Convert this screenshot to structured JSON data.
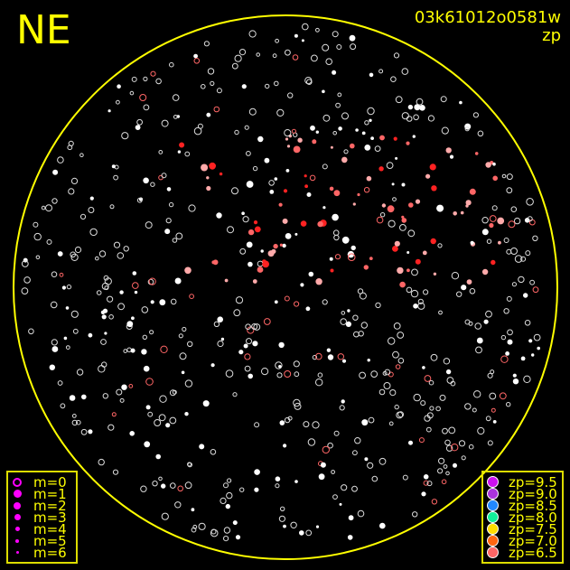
{
  "title": "NE",
  "frame_id": "03k61012o0581w",
  "mode_label": "zp",
  "horizon_color": "#ffff00",
  "mag_legend": [
    {
      "label": "m=0",
      "size": 10,
      "hollow": true
    },
    {
      "label": "m=1",
      "size": 9
    },
    {
      "label": "m=2",
      "size": 8
    },
    {
      "label": "m=3",
      "size": 7
    },
    {
      "label": "m=4",
      "size": 5
    },
    {
      "label": "m=5",
      "size": 4
    },
    {
      "label": "m=6",
      "size": 3
    }
  ],
  "mag_color": "#ff00ff",
  "zp_legend": [
    {
      "label": "zp=9.5",
      "color": "#cc11ee"
    },
    {
      "label": "zp=9.0",
      "color": "#aa33dd"
    },
    {
      "label": "zp=8.5",
      "color": "#2288ff"
    },
    {
      "label": "zp=8.0",
      "color": "#11ee99"
    },
    {
      "label": "zp=7.5",
      "color": "#ffdd00"
    },
    {
      "label": "zp=7.0",
      "color": "#ff6611"
    },
    {
      "label": "zp=6.5",
      "color": "#ff6666"
    }
  ]
}
